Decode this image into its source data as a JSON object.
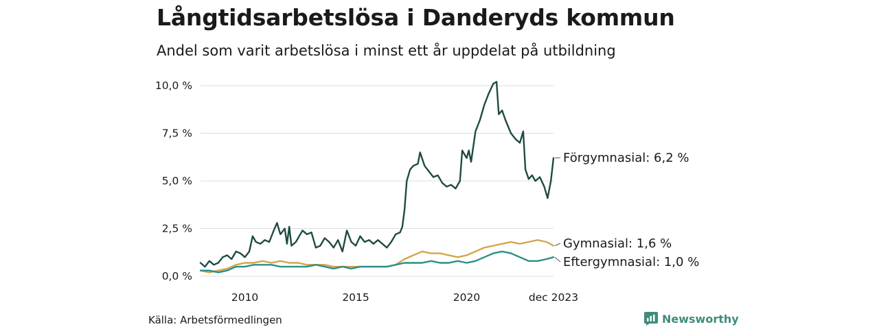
{
  "header": {
    "title": "Långtidsarbetslösa i Danderyds kommun",
    "subtitle": "Andel som varit arbetslösa i minst ett år uppdelat på utbildning"
  },
  "footer": {
    "source": "Källa: Arbetsförmedlingen",
    "brand": "Newsworthy"
  },
  "chart_data": {
    "type": "line",
    "title": "Långtidsarbetslösa i Danderyds kommun",
    "subtitle": "Andel som varit arbetslösa i minst ett år uppdelat på utbildning",
    "xlabel": "",
    "ylabel": "",
    "x_range": [
      2008.0,
      2023.917
    ],
    "ylim": [
      0,
      10.5
    ],
    "y_ticks": [
      {
        "value": 0,
        "label": "0,0 %"
      },
      {
        "value": 2.5,
        "label": "2,5 %"
      },
      {
        "value": 5,
        "label": "5,0 %"
      },
      {
        "value": 7.5,
        "label": "7,5 %"
      },
      {
        "value": 10,
        "label": "10,0 %"
      }
    ],
    "x_ticks": [
      {
        "value": 2010,
        "label": "2010"
      },
      {
        "value": 2015,
        "label": "2015"
      },
      {
        "value": 2020,
        "label": "2020"
      },
      {
        "value": 2023.917,
        "label": "dec 2023"
      }
    ],
    "grid": "horizontal",
    "series": [
      {
        "name": "Förgymnasial",
        "color": "#1f4a42",
        "end_label": "Förgymnasial: 6,2 %",
        "points": [
          [
            2008.0,
            0.7
          ],
          [
            2008.2,
            0.5
          ],
          [
            2008.4,
            0.8
          ],
          [
            2008.6,
            0.6
          ],
          [
            2008.8,
            0.7
          ],
          [
            2009.0,
            1.0
          ],
          [
            2009.2,
            1.1
          ],
          [
            2009.4,
            0.9
          ],
          [
            2009.6,
            1.3
          ],
          [
            2009.8,
            1.2
          ],
          [
            2010.0,
            1.0
          ],
          [
            2010.2,
            1.3
          ],
          [
            2010.35,
            2.1
          ],
          [
            2010.5,
            1.8
          ],
          [
            2010.7,
            1.7
          ],
          [
            2010.9,
            1.9
          ],
          [
            2011.1,
            1.8
          ],
          [
            2011.3,
            2.4
          ],
          [
            2011.45,
            2.8
          ],
          [
            2011.6,
            2.2
          ],
          [
            2011.8,
            2.5
          ],
          [
            2011.9,
            1.7
          ],
          [
            2012.0,
            2.6
          ],
          [
            2012.1,
            1.6
          ],
          [
            2012.3,
            1.8
          ],
          [
            2012.5,
            2.2
          ],
          [
            2012.6,
            2.4
          ],
          [
            2012.8,
            2.2
          ],
          [
            2013.0,
            2.3
          ],
          [
            2013.2,
            1.5
          ],
          [
            2013.4,
            1.6
          ],
          [
            2013.6,
            2.0
          ],
          [
            2013.8,
            1.8
          ],
          [
            2014.0,
            1.5
          ],
          [
            2014.2,
            1.9
          ],
          [
            2014.4,
            1.3
          ],
          [
            2014.6,
            2.4
          ],
          [
            2014.8,
            1.8
          ],
          [
            2015.0,
            1.6
          ],
          [
            2015.2,
            2.1
          ],
          [
            2015.4,
            1.8
          ],
          [
            2015.6,
            1.9
          ],
          [
            2015.8,
            1.7
          ],
          [
            2016.0,
            1.9
          ],
          [
            2016.2,
            1.7
          ],
          [
            2016.4,
            1.5
          ],
          [
            2016.6,
            1.8
          ],
          [
            2016.8,
            2.2
          ],
          [
            2017.0,
            2.3
          ],
          [
            2017.1,
            2.6
          ],
          [
            2017.2,
            3.5
          ],
          [
            2017.3,
            5.0
          ],
          [
            2017.45,
            5.6
          ],
          [
            2017.6,
            5.8
          ],
          [
            2017.8,
            5.9
          ],
          [
            2017.9,
            6.5
          ],
          [
            2018.1,
            5.8
          ],
          [
            2018.3,
            5.5
          ],
          [
            2018.5,
            5.2
          ],
          [
            2018.7,
            5.3
          ],
          [
            2018.9,
            4.9
          ],
          [
            2019.1,
            4.7
          ],
          [
            2019.3,
            4.8
          ],
          [
            2019.5,
            4.6
          ],
          [
            2019.7,
            5.0
          ],
          [
            2019.8,
            6.6
          ],
          [
            2020.0,
            6.2
          ],
          [
            2020.1,
            6.6
          ],
          [
            2020.2,
            6.0
          ],
          [
            2020.4,
            7.6
          ],
          [
            2020.6,
            8.2
          ],
          [
            2020.8,
            9.0
          ],
          [
            2021.0,
            9.6
          ],
          [
            2021.2,
            10.1
          ],
          [
            2021.35,
            10.2
          ],
          [
            2021.45,
            8.5
          ],
          [
            2021.6,
            8.7
          ],
          [
            2021.75,
            8.2
          ],
          [
            2022.0,
            7.5
          ],
          [
            2022.2,
            7.2
          ],
          [
            2022.4,
            7.0
          ],
          [
            2022.55,
            7.6
          ],
          [
            2022.65,
            5.6
          ],
          [
            2022.8,
            5.1
          ],
          [
            2022.95,
            5.3
          ],
          [
            2023.1,
            5.0
          ],
          [
            2023.3,
            5.2
          ],
          [
            2023.5,
            4.7
          ],
          [
            2023.65,
            4.1
          ],
          [
            2023.8,
            5.0
          ],
          [
            2023.917,
            6.2
          ]
        ]
      },
      {
        "name": "Gymnasial",
        "color": "#d4a44c",
        "end_label": "Gymnasial: 1,6 %",
        "points": [
          [
            2008.0,
            0.3
          ],
          [
            2008.4,
            0.2
          ],
          [
            2008.8,
            0.3
          ],
          [
            2009.2,
            0.4
          ],
          [
            2009.6,
            0.6
          ],
          [
            2010.0,
            0.7
          ],
          [
            2010.4,
            0.7
          ],
          [
            2010.8,
            0.8
          ],
          [
            2011.2,
            0.7
          ],
          [
            2011.6,
            0.8
          ],
          [
            2012.0,
            0.7
          ],
          [
            2012.4,
            0.7
          ],
          [
            2012.8,
            0.6
          ],
          [
            2013.2,
            0.6
          ],
          [
            2013.6,
            0.6
          ],
          [
            2014.0,
            0.5
          ],
          [
            2014.4,
            0.5
          ],
          [
            2014.8,
            0.5
          ],
          [
            2015.2,
            0.5
          ],
          [
            2015.6,
            0.5
          ],
          [
            2016.0,
            0.5
          ],
          [
            2016.4,
            0.5
          ],
          [
            2016.8,
            0.6
          ],
          [
            2017.2,
            0.9
          ],
          [
            2017.6,
            1.1
          ],
          [
            2018.0,
            1.3
          ],
          [
            2018.4,
            1.2
          ],
          [
            2018.8,
            1.2
          ],
          [
            2019.2,
            1.1
          ],
          [
            2019.6,
            1.0
          ],
          [
            2020.0,
            1.1
          ],
          [
            2020.4,
            1.3
          ],
          [
            2020.8,
            1.5
          ],
          [
            2021.2,
            1.6
          ],
          [
            2021.6,
            1.7
          ],
          [
            2022.0,
            1.8
          ],
          [
            2022.4,
            1.7
          ],
          [
            2022.8,
            1.8
          ],
          [
            2023.2,
            1.9
          ],
          [
            2023.6,
            1.8
          ],
          [
            2023.917,
            1.6
          ]
        ]
      },
      {
        "name": "Eftergymnasial",
        "color": "#2a8f82",
        "end_label": "Eftergymnasial: 1,0 %",
        "points": [
          [
            2008.0,
            0.3
          ],
          [
            2008.4,
            0.3
          ],
          [
            2008.8,
            0.2
          ],
          [
            2009.2,
            0.3
          ],
          [
            2009.6,
            0.5
          ],
          [
            2010.0,
            0.5
          ],
          [
            2010.4,
            0.6
          ],
          [
            2010.8,
            0.6
          ],
          [
            2011.2,
            0.6
          ],
          [
            2011.6,
            0.5
          ],
          [
            2012.0,
            0.5
          ],
          [
            2012.4,
            0.5
          ],
          [
            2012.8,
            0.5
          ],
          [
            2013.2,
            0.6
          ],
          [
            2013.6,
            0.5
          ],
          [
            2014.0,
            0.4
          ],
          [
            2014.4,
            0.5
          ],
          [
            2014.8,
            0.4
          ],
          [
            2015.2,
            0.5
          ],
          [
            2015.6,
            0.5
          ],
          [
            2016.0,
            0.5
          ],
          [
            2016.4,
            0.5
          ],
          [
            2016.8,
            0.6
          ],
          [
            2017.2,
            0.7
          ],
          [
            2017.6,
            0.7
          ],
          [
            2018.0,
            0.7
          ],
          [
            2018.4,
            0.8
          ],
          [
            2018.8,
            0.7
          ],
          [
            2019.2,
            0.7
          ],
          [
            2019.6,
            0.8
          ],
          [
            2020.0,
            0.7
          ],
          [
            2020.4,
            0.8
          ],
          [
            2020.8,
            1.0
          ],
          [
            2021.2,
            1.2
          ],
          [
            2021.6,
            1.3
          ],
          [
            2022.0,
            1.2
          ],
          [
            2022.4,
            1.0
          ],
          [
            2022.8,
            0.8
          ],
          [
            2023.2,
            0.8
          ],
          [
            2023.6,
            0.9
          ],
          [
            2023.917,
            1.0
          ]
        ]
      }
    ]
  }
}
